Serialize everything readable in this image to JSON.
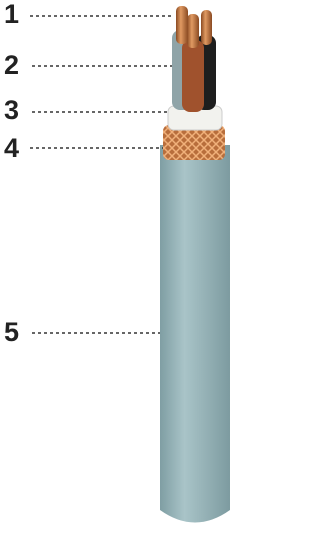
{
  "callouts": [
    "1",
    "2",
    "3",
    "4",
    "5"
  ]
}
